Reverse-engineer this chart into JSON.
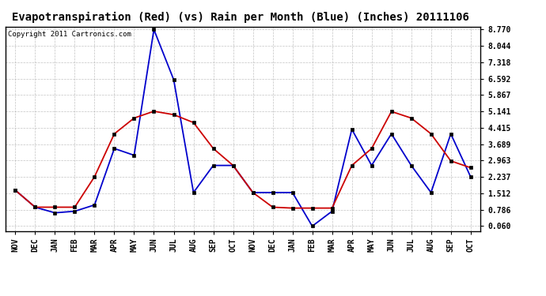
{
  "title": "Evapotranspiration (Red) (vs) Rain per Month (Blue) (Inches) 20111106",
  "copyright": "Copyright 2011 Cartronics.com",
  "months": [
    "NOV",
    "DEC",
    "JAN",
    "FEB",
    "MAR",
    "APR",
    "MAY",
    "JUN",
    "JUL",
    "AUG",
    "SEP",
    "OCT",
    "NOV",
    "DEC",
    "JAN",
    "FEB",
    "MAR",
    "APR",
    "MAY",
    "JUN",
    "JUL",
    "AUG",
    "SEP",
    "OCT"
  ],
  "blue_rain": [
    1.65,
    0.9,
    0.65,
    0.72,
    1.0,
    3.5,
    3.2,
    8.77,
    6.55,
    1.55,
    2.75,
    2.75,
    1.55,
    1.55,
    1.55,
    0.06,
    0.72,
    4.35,
    2.75,
    4.15,
    2.75,
    1.55,
    4.15,
    2.25
  ],
  "red_et": [
    1.65,
    0.9,
    0.9,
    0.9,
    2.25,
    4.15,
    4.85,
    5.15,
    5.0,
    4.65,
    3.5,
    2.75,
    1.55,
    0.9,
    0.86,
    0.86,
    0.86,
    2.75,
    3.5,
    5.14,
    4.85,
    4.15,
    2.95,
    2.65
  ],
  "yticks": [
    0.06,
    0.786,
    1.512,
    2.237,
    2.963,
    3.689,
    4.415,
    5.141,
    5.867,
    6.592,
    7.318,
    8.044,
    8.77
  ],
  "ymin": -0.15,
  "ymax": 8.9,
  "blue_color": "#0000cc",
  "red_color": "#cc0000",
  "bg_color": "#ffffff",
  "grid_color": "#aaaaaa",
  "title_fontsize": 10,
  "copyright_fontsize": 6.5
}
